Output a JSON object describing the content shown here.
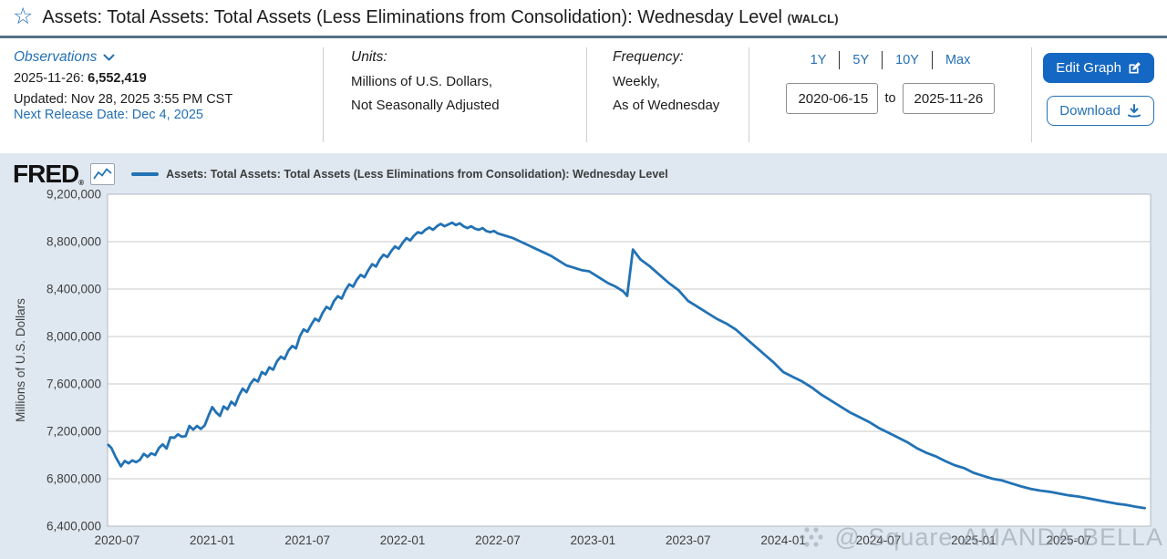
{
  "page": {
    "title": "Assets: Total Assets: Total Assets (Less Eliminations from Consolidation): Wednesday Level",
    "title_code": "(WALCL)"
  },
  "header": {
    "observations": {
      "label": "Observations",
      "latest_date": "2025-11-26:",
      "latest_value": "6,552,419",
      "updated": "Updated: Nov 28, 2025 3:55 PM CST",
      "next_release": "Next Release Date: Dec 4, 2025"
    },
    "units": {
      "label": "Units:",
      "line1": "Millions of U.S. Dollars,",
      "line2": "Not Seasonally Adjusted"
    },
    "frequency": {
      "label": "Frequency:",
      "line1": "Weekly,",
      "line2": "As of Wednesday"
    },
    "range": {
      "presets": [
        "1Y",
        "5Y",
        "10Y",
        "Max"
      ],
      "start": "2020-06-15",
      "to_label": "to",
      "end": "2025-11-26"
    },
    "buttons": {
      "edit": "Edit Graph",
      "download": "Download"
    }
  },
  "chart": {
    "brand": "FRED",
    "legend": "Assets: Total Assets: Total Assets (Less Eliminations from Consolidation): Wednesday Level",
    "y_axis_title": "Millions of U.S. Dollars"
  },
  "watermark": {
    "text": "@ Square-AMANDA-BELLA"
  },
  "colors": {
    "accent": "#2470b4",
    "line": "#2272b4",
    "edit_button_bg": "#1467c2",
    "chart_bg": "#dfe8f1",
    "grid": "#c9c9c9",
    "plot_border": "#b3bac2",
    "titlebar_border": "#567086"
  },
  "chart_data": {
    "type": "line",
    "title": "Assets: Total Assets: Total Assets (Less Eliminations from Consolidation): Wednesday Level",
    "xlabel": "",
    "ylabel": "Millions of U.S. Dollars",
    "ylim": [
      6400000,
      9200000
    ],
    "xlim": [
      2020.45,
      2025.93
    ],
    "grid": "horizontal",
    "legend_position": "top-left",
    "y_ticks": [
      6400000,
      6800000,
      7200000,
      7600000,
      8000000,
      8400000,
      8800000,
      9200000
    ],
    "x_ticks": [
      {
        "label": "2020-07",
        "x": 2020.5
      },
      {
        "label": "2021-01",
        "x": 2021.0
      },
      {
        "label": "2021-07",
        "x": 2021.5
      },
      {
        "label": "2022-01",
        "x": 2022.0
      },
      {
        "label": "2022-07",
        "x": 2022.5
      },
      {
        "label": "2023-01",
        "x": 2023.0
      },
      {
        "label": "2023-07",
        "x": 2023.5
      },
      {
        "label": "2024-01",
        "x": 2024.0
      },
      {
        "label": "2024-07",
        "x": 2024.5
      },
      {
        "label": "2025-01",
        "x": 2025.0
      },
      {
        "label": "2025-07",
        "x": 2025.5
      }
    ],
    "series": [
      {
        "name": "Assets: Total Assets: Total Assets (Less Eliminations from Consolidation): Wednesday Level",
        "color": "#2272b4",
        "points": [
          [
            2020.454,
            7085000
          ],
          [
            2020.47,
            7060000
          ],
          [
            2020.49,
            6990000
          ],
          [
            2020.52,
            6905000
          ],
          [
            2020.54,
            6950000
          ],
          [
            2020.56,
            6930000
          ],
          [
            2020.58,
            6955000
          ],
          [
            2020.6,
            6940000
          ],
          [
            2020.62,
            6960000
          ],
          [
            2020.64,
            7010000
          ],
          [
            2020.66,
            6985000
          ],
          [
            2020.68,
            7015000
          ],
          [
            2020.7,
            7000000
          ],
          [
            2020.72,
            7060000
          ],
          [
            2020.74,
            7090000
          ],
          [
            2020.76,
            7055000
          ],
          [
            2020.78,
            7150000
          ],
          [
            2020.8,
            7145000
          ],
          [
            2020.82,
            7175000
          ],
          [
            2020.84,
            7155000
          ],
          [
            2020.86,
            7160000
          ],
          [
            2020.88,
            7245000
          ],
          [
            2020.9,
            7215000
          ],
          [
            2020.92,
            7245000
          ],
          [
            2020.94,
            7220000
          ],
          [
            2020.96,
            7250000
          ],
          [
            2020.98,
            7330000
          ],
          [
            2021.0,
            7405000
          ],
          [
            2021.02,
            7360000
          ],
          [
            2021.04,
            7330000
          ],
          [
            2021.06,
            7410000
          ],
          [
            2021.08,
            7385000
          ],
          [
            2021.1,
            7450000
          ],
          [
            2021.12,
            7420000
          ],
          [
            2021.14,
            7500000
          ],
          [
            2021.16,
            7560000
          ],
          [
            2021.18,
            7530000
          ],
          [
            2021.2,
            7600000
          ],
          [
            2021.22,
            7640000
          ],
          [
            2021.24,
            7620000
          ],
          [
            2021.26,
            7700000
          ],
          [
            2021.28,
            7680000
          ],
          [
            2021.3,
            7740000
          ],
          [
            2021.32,
            7720000
          ],
          [
            2021.34,
            7790000
          ],
          [
            2021.36,
            7830000
          ],
          [
            2021.38,
            7810000
          ],
          [
            2021.4,
            7880000
          ],
          [
            2021.42,
            7920000
          ],
          [
            2021.44,
            7900000
          ],
          [
            2021.46,
            8000000
          ],
          [
            2021.48,
            8060000
          ],
          [
            2021.5,
            8040000
          ],
          [
            2021.52,
            8100000
          ],
          [
            2021.54,
            8150000
          ],
          [
            2021.56,
            8130000
          ],
          [
            2021.58,
            8200000
          ],
          [
            2021.6,
            8250000
          ],
          [
            2021.62,
            8230000
          ],
          [
            2021.64,
            8300000
          ],
          [
            2021.66,
            8340000
          ],
          [
            2021.68,
            8320000
          ],
          [
            2021.7,
            8390000
          ],
          [
            2021.72,
            8440000
          ],
          [
            2021.74,
            8420000
          ],
          [
            2021.76,
            8480000
          ],
          [
            2021.78,
            8520000
          ],
          [
            2021.8,
            8500000
          ],
          [
            2021.82,
            8560000
          ],
          [
            2021.84,
            8610000
          ],
          [
            2021.86,
            8590000
          ],
          [
            2021.88,
            8650000
          ],
          [
            2021.9,
            8690000
          ],
          [
            2021.92,
            8670000
          ],
          [
            2021.94,
            8720000
          ],
          [
            2021.96,
            8760000
          ],
          [
            2021.98,
            8740000
          ],
          [
            2022.0,
            8790000
          ],
          [
            2022.02,
            8830000
          ],
          [
            2022.04,
            8810000
          ],
          [
            2022.06,
            8850000
          ],
          [
            2022.08,
            8880000
          ],
          [
            2022.1,
            8870000
          ],
          [
            2022.12,
            8900000
          ],
          [
            2022.14,
            8920000
          ],
          [
            2022.16,
            8900000
          ],
          [
            2022.18,
            8930000
          ],
          [
            2022.2,
            8950000
          ],
          [
            2022.22,
            8930000
          ],
          [
            2022.24,
            8945000
          ],
          [
            2022.26,
            8960000
          ],
          [
            2022.28,
            8940000
          ],
          [
            2022.3,
            8955000
          ],
          [
            2022.32,
            8930000
          ],
          [
            2022.34,
            8915000
          ],
          [
            2022.36,
            8930000
          ],
          [
            2022.38,
            8910000
          ],
          [
            2022.4,
            8900000
          ],
          [
            2022.42,
            8915000
          ],
          [
            2022.44,
            8890000
          ],
          [
            2022.46,
            8880000
          ],
          [
            2022.48,
            8890000
          ],
          [
            2022.5,
            8870000
          ],
          [
            2022.54,
            8850000
          ],
          [
            2022.58,
            8830000
          ],
          [
            2022.62,
            8800000
          ],
          [
            2022.66,
            8770000
          ],
          [
            2022.7,
            8740000
          ],
          [
            2022.74,
            8710000
          ],
          [
            2022.78,
            8680000
          ],
          [
            2022.82,
            8640000
          ],
          [
            2022.86,
            8600000
          ],
          [
            2022.9,
            8580000
          ],
          [
            2022.94,
            8560000
          ],
          [
            2022.98,
            8550000
          ],
          [
            2023.0,
            8530000
          ],
          [
            2023.04,
            8490000
          ],
          [
            2023.08,
            8450000
          ],
          [
            2023.12,
            8420000
          ],
          [
            2023.16,
            8380000
          ],
          [
            2023.18,
            8342000
          ],
          [
            2023.21,
            8734000
          ],
          [
            2023.25,
            8650000
          ],
          [
            2023.3,
            8590000
          ],
          [
            2023.35,
            8520000
          ],
          [
            2023.4,
            8450000
          ],
          [
            2023.45,
            8390000
          ],
          [
            2023.5,
            8300000
          ],
          [
            2023.55,
            8250000
          ],
          [
            2023.6,
            8200000
          ],
          [
            2023.65,
            8150000
          ],
          [
            2023.7,
            8110000
          ],
          [
            2023.75,
            8060000
          ],
          [
            2023.8,
            7990000
          ],
          [
            2023.85,
            7920000
          ],
          [
            2023.9,
            7850000
          ],
          [
            2023.95,
            7780000
          ],
          [
            2024.0,
            7700000
          ],
          [
            2024.05,
            7660000
          ],
          [
            2024.1,
            7620000
          ],
          [
            2024.15,
            7570000
          ],
          [
            2024.2,
            7510000
          ],
          [
            2024.25,
            7460000
          ],
          [
            2024.3,
            7410000
          ],
          [
            2024.35,
            7360000
          ],
          [
            2024.4,
            7320000
          ],
          [
            2024.45,
            7280000
          ],
          [
            2024.5,
            7230000
          ],
          [
            2024.55,
            7190000
          ],
          [
            2024.6,
            7150000
          ],
          [
            2024.65,
            7110000
          ],
          [
            2024.7,
            7060000
          ],
          [
            2024.75,
            7020000
          ],
          [
            2024.8,
            6990000
          ],
          [
            2024.85,
            6950000
          ],
          [
            2024.9,
            6915000
          ],
          [
            2024.95,
            6890000
          ],
          [
            2025.0,
            6850000
          ],
          [
            2025.05,
            6825000
          ],
          [
            2025.1,
            6800000
          ],
          [
            2025.15,
            6785000
          ],
          [
            2025.2,
            6760000
          ],
          [
            2025.25,
            6735000
          ],
          [
            2025.3,
            6715000
          ],
          [
            2025.35,
            6700000
          ],
          [
            2025.4,
            6690000
          ],
          [
            2025.45,
            6675000
          ],
          [
            2025.5,
            6660000
          ],
          [
            2025.55,
            6650000
          ],
          [
            2025.6,
            6635000
          ],
          [
            2025.65,
            6620000
          ],
          [
            2025.7,
            6605000
          ],
          [
            2025.75,
            6590000
          ],
          [
            2025.8,
            6580000
          ],
          [
            2025.85,
            6565000
          ],
          [
            2025.9,
            6552419
          ]
        ]
      }
    ]
  }
}
